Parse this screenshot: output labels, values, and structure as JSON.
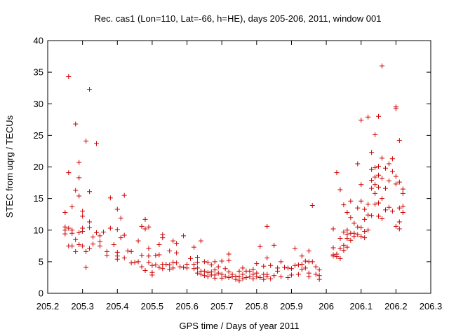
{
  "chart_data": {
    "type": "scatter",
    "title": "Rec. cas1 (Lon=110, Lat=-66, h=HE), days 205-206, 2011, window 001",
    "xlabel": "GPS time / Days of year 2011",
    "ylabel": "STEC from uqrg / TECUs",
    "xlim": [
      205.2,
      206.3
    ],
    "ylim": [
      0,
      40
    ],
    "xticks": [
      205.2,
      205.3,
      205.4,
      205.5,
      205.6,
      205.7,
      205.8,
      205.9,
      206.0,
      206.1,
      206.2,
      206.3
    ],
    "xtick_labels": [
      "205.2",
      "205.3",
      "205.4",
      "205.5",
      "205.6",
      "205.7",
      "205.8",
      "205.9",
      "206",
      "206.1",
      "206.2",
      "206.3"
    ],
    "yticks": [
      0,
      5,
      10,
      15,
      20,
      25,
      30,
      35,
      40
    ],
    "ytick_labels": [
      "0",
      "5",
      "10",
      "15",
      "20",
      "25",
      "30",
      "35",
      "40"
    ],
    "marker": "+",
    "color": "#cc0000",
    "grid": false,
    "series": [
      {
        "name": "STEC",
        "points": [
          [
            205.25,
            12.8
          ],
          [
            205.25,
            10.5
          ],
          [
            205.25,
            10.0
          ],
          [
            205.25,
            9.4
          ],
          [
            205.26,
            34.3
          ],
          [
            205.26,
            19.1
          ],
          [
            205.26,
            10.3
          ],
          [
            205.26,
            7.5
          ],
          [
            205.27,
            13.7
          ],
          [
            205.27,
            10.0
          ],
          [
            205.27,
            9.5
          ],
          [
            205.27,
            7.5
          ],
          [
            205.28,
            26.8
          ],
          [
            205.28,
            16.3
          ],
          [
            205.28,
            8.5
          ],
          [
            205.28,
            6.6
          ],
          [
            205.29,
            20.7
          ],
          [
            205.29,
            18.3
          ],
          [
            205.29,
            15.4
          ],
          [
            205.29,
            9.6
          ],
          [
            205.29,
            7.7
          ],
          [
            205.3,
            13.0
          ],
          [
            205.3,
            12.2
          ],
          [
            205.3,
            10.3
          ],
          [
            205.3,
            9.8
          ],
          [
            205.3,
            7.5
          ],
          [
            205.31,
            24.1
          ],
          [
            205.31,
            6.6
          ],
          [
            205.31,
            4.1
          ],
          [
            205.32,
            32.3
          ],
          [
            205.32,
            16.1
          ],
          [
            205.32,
            11.3
          ],
          [
            205.32,
            10.4
          ],
          [
            205.32,
            7.1
          ],
          [
            205.33,
            8.9
          ],
          [
            205.33,
            7.8
          ],
          [
            205.34,
            23.7
          ],
          [
            205.34,
            9.6
          ],
          [
            205.35,
            9.1
          ],
          [
            205.35,
            8.2
          ],
          [
            205.35,
            7.5
          ],
          [
            205.36,
            9.7
          ],
          [
            205.37,
            6.6
          ],
          [
            205.37,
            6.0
          ],
          [
            205.38,
            15.1
          ],
          [
            205.38,
            10.3
          ],
          [
            205.39,
            7.7
          ],
          [
            205.4,
            13.3
          ],
          [
            205.4,
            10.1
          ],
          [
            205.4,
            6.5
          ],
          [
            205.4,
            5.9
          ],
          [
            205.4,
            5.4
          ],
          [
            205.41,
            11.9
          ],
          [
            205.41,
            8.8
          ],
          [
            205.42,
            15.5
          ],
          [
            205.42,
            9.2
          ],
          [
            205.42,
            5.6
          ],
          [
            205.43,
            6.7
          ],
          [
            205.44,
            6.6
          ],
          [
            205.44,
            4.8
          ],
          [
            205.45,
            4.9
          ],
          [
            205.46,
            8.3
          ],
          [
            205.46,
            5.0
          ],
          [
            205.47,
            10.6
          ],
          [
            205.47,
            6.0
          ],
          [
            205.47,
            4.2
          ],
          [
            205.48,
            11.7
          ],
          [
            205.48,
            10.2
          ],
          [
            205.48,
            3.6
          ],
          [
            205.49,
            10.5
          ],
          [
            205.49,
            7.1
          ],
          [
            205.49,
            5.9
          ],
          [
            205.49,
            4.9
          ],
          [
            205.5,
            4.4
          ],
          [
            205.5,
            3.3
          ],
          [
            205.5,
            2.9
          ],
          [
            205.51,
            6.0
          ],
          [
            205.51,
            4.5
          ],
          [
            205.52,
            7.7
          ],
          [
            205.52,
            6.1
          ],
          [
            205.52,
            4.1
          ],
          [
            205.53,
            9.3
          ],
          [
            205.53,
            8.8
          ],
          [
            205.53,
            4.6
          ],
          [
            205.53,
            3.9
          ],
          [
            205.54,
            4.6
          ],
          [
            205.55,
            6.7
          ],
          [
            205.55,
            4.5
          ],
          [
            205.55,
            3.8
          ],
          [
            205.56,
            8.3
          ],
          [
            205.56,
            4.9
          ],
          [
            205.56,
            4.0
          ],
          [
            205.57,
            7.9
          ],
          [
            205.57,
            6.4
          ],
          [
            205.57,
            4.8
          ],
          [
            205.58,
            4.2
          ],
          [
            205.59,
            9.1
          ],
          [
            205.59,
            4.1
          ],
          [
            205.6,
            4.6
          ],
          [
            205.6,
            4.0
          ],
          [
            205.61,
            5.5
          ],
          [
            205.62,
            7.3
          ],
          [
            205.62,
            4.6
          ],
          [
            205.62,
            3.9
          ],
          [
            205.63,
            5.7
          ],
          [
            205.63,
            4.9
          ],
          [
            205.63,
            4.0
          ],
          [
            205.63,
            3.2
          ],
          [
            205.64,
            8.3
          ],
          [
            205.64,
            3.5
          ],
          [
            205.64,
            3.0
          ],
          [
            205.65,
            5.0
          ],
          [
            205.65,
            3.5
          ],
          [
            205.65,
            2.8
          ],
          [
            205.66,
            4.9
          ],
          [
            205.66,
            3.3
          ],
          [
            205.66,
            2.6
          ],
          [
            205.67,
            4.5
          ],
          [
            205.67,
            3.4
          ],
          [
            205.67,
            2.9
          ],
          [
            205.68,
            5.0
          ],
          [
            205.68,
            3.7
          ],
          [
            205.68,
            2.9
          ],
          [
            205.68,
            2.4
          ],
          [
            205.69,
            4.2
          ],
          [
            205.69,
            3.2
          ],
          [
            205.7,
            5.1
          ],
          [
            205.7,
            3.0
          ],
          [
            205.7,
            2.4
          ],
          [
            205.71,
            3.9
          ],
          [
            205.71,
            2.7
          ],
          [
            205.72,
            6.2
          ],
          [
            205.72,
            5.2
          ],
          [
            205.72,
            3.4
          ],
          [
            205.72,
            2.5
          ],
          [
            205.73,
            3.0
          ],
          [
            205.73,
            2.6
          ],
          [
            205.74,
            2.7
          ],
          [
            205.74,
            2.2
          ],
          [
            205.75,
            3.5
          ],
          [
            205.75,
            2.6
          ],
          [
            205.75,
            2.0
          ],
          [
            205.76,
            4.0
          ],
          [
            205.76,
            3.0
          ],
          [
            205.76,
            2.3
          ],
          [
            205.77,
            3.5
          ],
          [
            205.77,
            2.5
          ],
          [
            205.78,
            3.5
          ],
          [
            205.78,
            2.6
          ],
          [
            205.79,
            3.8
          ],
          [
            205.79,
            3.0
          ],
          [
            205.79,
            2.3
          ],
          [
            205.8,
            4.7
          ],
          [
            205.8,
            3.2
          ],
          [
            205.8,
            2.6
          ],
          [
            205.81,
            7.4
          ],
          [
            205.81,
            2.5
          ],
          [
            205.82,
            4.3
          ],
          [
            205.82,
            3.0
          ],
          [
            205.82,
            2.2
          ],
          [
            205.83,
            10.6
          ],
          [
            205.83,
            5.6
          ],
          [
            205.83,
            3.0
          ],
          [
            205.83,
            2.6
          ],
          [
            205.84,
            4.4
          ],
          [
            205.84,
            2.3
          ],
          [
            205.85,
            7.6
          ],
          [
            205.85,
            2.8
          ],
          [
            205.86,
            4.0
          ],
          [
            205.86,
            3.5
          ],
          [
            205.87,
            5.0
          ],
          [
            205.87,
            2.6
          ],
          [
            205.88,
            4.1
          ],
          [
            205.89,
            4.0
          ],
          [
            205.89,
            2.5
          ],
          [
            205.9,
            3.9
          ],
          [
            205.9,
            2.9
          ],
          [
            205.91,
            7.1
          ],
          [
            205.91,
            4.4
          ],
          [
            205.92,
            3.0
          ],
          [
            205.92,
            4.5
          ],
          [
            205.93,
            5.9
          ],
          [
            205.93,
            4.6
          ],
          [
            205.93,
            3.8
          ],
          [
            205.94,
            5.1
          ],
          [
            205.94,
            4.0
          ],
          [
            205.95,
            6.7
          ],
          [
            205.95,
            5.0
          ],
          [
            205.95,
            3.2
          ],
          [
            205.95,
            2.6
          ],
          [
            205.96,
            13.9
          ],
          [
            205.96,
            5.0
          ],
          [
            205.97,
            4.2
          ],
          [
            205.97,
            3.0
          ],
          [
            205.98,
            3.7
          ],
          [
            205.98,
            2.8
          ],
          [
            205.98,
            2.2
          ],
          [
            206.02,
            10.2
          ],
          [
            206.02,
            7.2
          ],
          [
            206.02,
            6.1
          ],
          [
            206.02,
            5.9
          ],
          [
            206.03,
            19.1
          ],
          [
            206.03,
            6.2
          ],
          [
            206.03,
            5.8
          ],
          [
            206.04,
            16.4
          ],
          [
            206.04,
            8.7
          ],
          [
            206.04,
            7.1
          ],
          [
            206.04,
            5.5
          ],
          [
            206.05,
            14.0
          ],
          [
            206.05,
            9.7
          ],
          [
            206.05,
            7.6
          ],
          [
            206.05,
            6.8
          ],
          [
            206.06,
            12.8
          ],
          [
            206.06,
            10.0
          ],
          [
            206.06,
            9.3
          ],
          [
            206.06,
            8.7
          ],
          [
            206.06,
            7.3
          ],
          [
            206.07,
            14.6
          ],
          [
            206.07,
            12.0
          ],
          [
            206.07,
            9.5
          ],
          [
            206.07,
            8.4
          ],
          [
            206.08,
            11.1
          ],
          [
            206.08,
            9.5
          ],
          [
            206.08,
            9.0
          ],
          [
            206.09,
            20.5
          ],
          [
            206.09,
            13.5
          ],
          [
            206.09,
            10.5
          ],
          [
            206.09,
            9.3
          ],
          [
            206.1,
            27.4
          ],
          [
            206.1,
            17.2
          ],
          [
            206.1,
            14.6
          ],
          [
            206.1,
            10.4
          ],
          [
            206.1,
            9.0
          ],
          [
            206.11,
            13.3
          ],
          [
            206.11,
            11.7
          ],
          [
            206.11,
            9.8
          ],
          [
            206.11,
            8.8
          ],
          [
            206.12,
            27.9
          ],
          [
            206.12,
            14.1
          ],
          [
            206.12,
            12.4
          ],
          [
            206.12,
            10.0
          ],
          [
            206.13,
            22.3
          ],
          [
            206.13,
            19.6
          ],
          [
            206.13,
            17.9
          ],
          [
            206.13,
            16.6
          ],
          [
            206.13,
            12.3
          ],
          [
            206.14,
            25.1
          ],
          [
            206.14,
            19.9
          ],
          [
            206.14,
            18.4
          ],
          [
            206.14,
            17.2
          ],
          [
            206.14,
            15.8
          ],
          [
            206.14,
            14.1
          ],
          [
            206.15,
            28.0
          ],
          [
            206.15,
            20.1
          ],
          [
            206.15,
            18.7
          ],
          [
            206.15,
            16.8
          ],
          [
            206.15,
            14.3
          ],
          [
            206.15,
            12.2
          ],
          [
            206.16,
            36.0
          ],
          [
            206.16,
            21.4
          ],
          [
            206.16,
            18.2
          ],
          [
            206.16,
            15.0
          ],
          [
            206.16,
            11.8
          ],
          [
            206.17,
            19.8
          ],
          [
            206.17,
            16.6
          ],
          [
            206.17,
            13.2
          ],
          [
            206.18,
            20.5
          ],
          [
            206.18,
            17.8
          ],
          [
            206.18,
            13.6
          ],
          [
            206.19,
            21.3
          ],
          [
            206.19,
            19.3
          ],
          [
            206.19,
            13.0
          ],
          [
            206.2,
            29.5
          ],
          [
            206.2,
            29.2
          ],
          [
            206.2,
            18.5
          ],
          [
            206.2,
            17.3
          ],
          [
            206.2,
            10.6
          ],
          [
            206.21,
            24.2
          ],
          [
            206.21,
            17.6
          ],
          [
            206.21,
            13.5
          ],
          [
            206.21,
            11.3
          ],
          [
            206.21,
            10.2
          ],
          [
            206.22,
            16.5
          ],
          [
            206.22,
            13.8
          ],
          [
            206.22,
            12.8
          ],
          [
            206.22,
            15.8
          ]
        ]
      }
    ]
  }
}
